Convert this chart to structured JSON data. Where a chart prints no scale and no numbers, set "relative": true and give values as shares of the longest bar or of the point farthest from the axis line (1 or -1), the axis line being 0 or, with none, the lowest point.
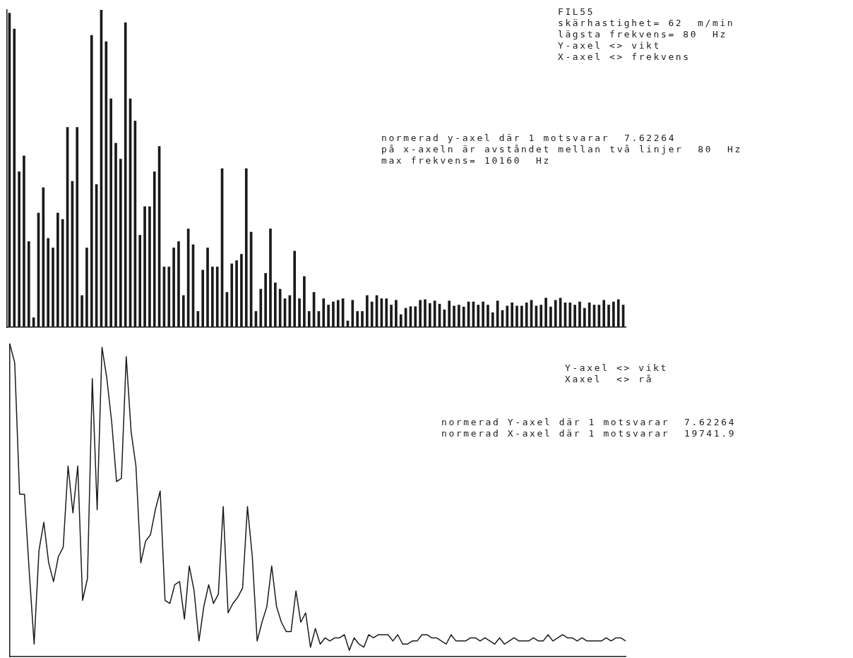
{
  "chart_data": [
    {
      "type": "bar",
      "relative": true,
      "tick_labels": false,
      "color": "#1a1a1a",
      "annotations": [
        "FIL55",
        "skärhastighet= 62  m/min",
        "lägsta frekvens= 80  Hz",
        "Y-axel <> vikt",
        "X-axel <> frekvens",
        "normerad y-axel där 1 motsvarar  7.62264",
        "på x-axeln är avståndet mellan två linjer  80  Hz",
        "max frekvens= 10160  Hz"
      ],
      "categories": [
        null,
        null,
        null,
        null,
        null,
        null,
        null,
        null,
        null,
        null,
        null,
        null,
        null,
        null,
        null,
        null,
        null,
        null,
        null,
        null,
        null,
        null,
        null,
        null,
        null,
        null,
        null,
        null,
        null,
        null,
        null,
        null,
        null,
        null,
        null,
        null,
        null,
        null,
        null,
        null,
        null,
        null,
        null,
        null,
        null,
        null,
        null,
        null,
        null,
        null,
        null,
        null,
        null,
        null,
        null,
        null,
        null,
        null,
        null,
        null,
        null,
        null,
        null,
        null,
        null,
        null,
        null,
        null,
        null,
        null,
        null,
        null,
        null,
        null,
        null,
        null,
        null,
        null,
        null,
        null,
        null,
        null,
        null,
        null,
        null,
        null,
        null,
        null,
        null,
        null,
        null,
        null,
        null,
        null,
        null,
        null,
        null,
        null,
        null,
        null,
        null,
        null,
        null,
        null,
        null,
        null,
        null,
        null,
        null,
        null,
        null,
        null,
        null,
        null,
        null,
        null,
        null,
        null,
        null,
        null,
        null,
        null,
        null,
        null,
        null,
        null,
        null,
        null
      ],
      "values": [
        0.99,
        0.94,
        0.49,
        0.54,
        0.27,
        0.03,
        0.36,
        0.44,
        0.28,
        0.25,
        0.36,
        0.34,
        0.63,
        0.46,
        0.63,
        0.1,
        0.25,
        0.92,
        0.45,
        1.0,
        0.9,
        0.72,
        0.58,
        0.53,
        0.96,
        0.72,
        0.65,
        0.29,
        0.38,
        0.38,
        0.49,
        0.57,
        0.19,
        0.19,
        0.25,
        0.27,
        0.1,
        0.31,
        0.26,
        0.05,
        0.18,
        0.25,
        0.19,
        0.19,
        0.5,
        0.11,
        0.2,
        0.21,
        0.23,
        0.5,
        0.3,
        0.05,
        0.12,
        0.17,
        0.31,
        0.14,
        0.12,
        0.09,
        0.1,
        0.24,
        0.09,
        0.16,
        0.05,
        0.11,
        0.05,
        0.09,
        0.07,
        0.08,
        0.085,
        0.09,
        0.02,
        0.085,
        0.05,
        0.05,
        0.1,
        0.08,
        0.1,
        0.09,
        0.09,
        0.07,
        0.085,
        0.04,
        0.06,
        0.065,
        0.065,
        0.085,
        0.087,
        0.075,
        0.083,
        0.073,
        0.055,
        0.083,
        0.067,
        0.07,
        0.064,
        0.08,
        0.08,
        0.07,
        0.08,
        0.07,
        0.046,
        0.083,
        0.053,
        0.067,
        0.077,
        0.067,
        0.067,
        0.077,
        0.085,
        0.067,
        0.07,
        0.092,
        0.064,
        0.085,
        0.092,
        0.077,
        0.077,
        0.07,
        0.08,
        0.06,
        0.077,
        0.07,
        0.07,
        0.085,
        0.07,
        0.08,
        0.087,
        0.07
      ]
    },
    {
      "type": "line",
      "relative": true,
      "tick_labels": false,
      "color": "#1a1a1a",
      "annotations": [
        "Y-axel <> vikt",
        "Xaxel  <> rå",
        "normerad Y-axel där 1 motsvarar  7.62264",
        "normerad X-axel där 1 motsvarar  19741.9"
      ],
      "categories": [
        null,
        null,
        null,
        null,
        null,
        null,
        null,
        null,
        null,
        null,
        null,
        null,
        null,
        null,
        null,
        null,
        null,
        null,
        null,
        null,
        null,
        null,
        null,
        null,
        null,
        null,
        null,
        null,
        null,
        null,
        null,
        null,
        null,
        null,
        null,
        null,
        null,
        null,
        null,
        null,
        null,
        null,
        null,
        null,
        null,
        null,
        null,
        null,
        null,
        null,
        null,
        null,
        null,
        null,
        null,
        null,
        null,
        null,
        null,
        null,
        null,
        null,
        null,
        null,
        null,
        null,
        null,
        null,
        null,
        null,
        null,
        null,
        null,
        null,
        null,
        null,
        null,
        null,
        null,
        null,
        null,
        null,
        null,
        null,
        null,
        null,
        null,
        null,
        null,
        null,
        null,
        null,
        null,
        null,
        null,
        null,
        null,
        null,
        null,
        null,
        null,
        null,
        null,
        null,
        null,
        null,
        null,
        null,
        null,
        null,
        null,
        null,
        null,
        null,
        null,
        null,
        null,
        null,
        null,
        null,
        null,
        null,
        null,
        null,
        null,
        null,
        null,
        null
      ],
      "values": [
        1.0,
        0.94,
        0.52,
        0.52,
        0.27,
        0.04,
        0.34,
        0.43,
        0.3,
        0.24,
        0.32,
        0.35,
        0.61,
        0.46,
        0.61,
        0.18,
        0.25,
        0.89,
        0.47,
        0.99,
        0.89,
        0.75,
        0.56,
        0.57,
        0.96,
        0.72,
        0.61,
        0.3,
        0.37,
        0.39,
        0.47,
        0.53,
        0.18,
        0.17,
        0.23,
        0.24,
        0.12,
        0.29,
        0.21,
        0.05,
        0.16,
        0.23,
        0.17,
        0.2,
        0.48,
        0.14,
        0.17,
        0.19,
        0.22,
        0.48,
        0.32,
        0.05,
        0.11,
        0.16,
        0.29,
        0.16,
        0.11,
        0.08,
        0.08,
        0.21,
        0.11,
        0.14,
        0.03,
        0.09,
        0.04,
        0.06,
        0.05,
        0.06,
        0.06,
        0.07,
        0.02,
        0.06,
        0.04,
        0.03,
        0.07,
        0.06,
        0.07,
        0.07,
        0.07,
        0.05,
        0.07,
        0.04,
        0.04,
        0.05,
        0.05,
        0.07,
        0.07,
        0.06,
        0.06,
        0.05,
        0.04,
        0.07,
        0.05,
        0.05,
        0.05,
        0.06,
        0.06,
        0.05,
        0.06,
        0.05,
        0.04,
        0.06,
        0.04,
        0.05,
        0.06,
        0.05,
        0.05,
        0.05,
        0.06,
        0.05,
        0.05,
        0.07,
        0.05,
        0.06,
        0.07,
        0.06,
        0.06,
        0.05,
        0.06,
        0.05,
        0.05,
        0.05,
        0.05,
        0.06,
        0.05,
        0.06,
        0.06,
        0.05
      ]
    }
  ]
}
